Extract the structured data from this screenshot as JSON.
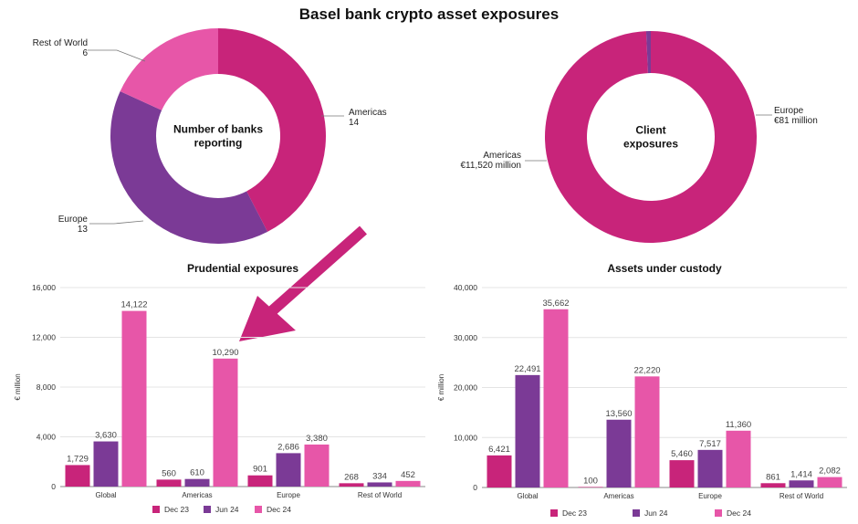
{
  "title": "Basel bank crypto asset exposures",
  "colors": {
    "dec23": "#c8247a",
    "jun24": "#7b3a96",
    "dec24": "#e756a8",
    "arrow": "#c8247a"
  },
  "chart_data": [
    {
      "type": "pie",
      "style": "donut",
      "center_label": [
        "Number of banks",
        "reporting"
      ],
      "slices": [
        {
          "label": "Americas",
          "value_label": "14",
          "value": 14,
          "color": "#c8247a"
        },
        {
          "label": "Europe",
          "value_label": "13",
          "value": 13,
          "color": "#7b3a96"
        },
        {
          "label": "Rest of World",
          "value_label": "6",
          "value": 6,
          "color": "#e756a8"
        }
      ]
    },
    {
      "type": "pie",
      "style": "donut",
      "center_label": [
        "Client",
        "exposures"
      ],
      "slices": [
        {
          "label": "Americas",
          "value_label": "€11,520 million",
          "value": 11520,
          "color": "#c8247a"
        },
        {
          "label": "Europe",
          "value_label": "€81 million",
          "value": 81,
          "color": "#7b3a96"
        }
      ]
    },
    {
      "type": "bar",
      "title": "Prudential exposures",
      "ylabel": "€ million",
      "ylim": [
        0,
        16000
      ],
      "yticks": [
        0,
        4000,
        8000,
        12000,
        16000
      ],
      "ytick_labels": [
        "0",
        "4,000",
        "8,000",
        "12,000",
        "16,000"
      ],
      "categories": [
        "Global",
        "Americas",
        "Europe",
        "Rest of World"
      ],
      "series": [
        {
          "name": "Dec 23",
          "values": [
            1729,
            560,
            901,
            268
          ],
          "labels": [
            "1,729",
            "560",
            "901",
            "268"
          ],
          "color": "#c8247a"
        },
        {
          "name": "Jun 24",
          "values": [
            3630,
            610,
            2686,
            334
          ],
          "labels": [
            "3,630",
            "610",
            "2,686",
            "334"
          ],
          "color": "#7b3a96"
        },
        {
          "name": "Dec 24",
          "values": [
            14122,
            10290,
            3380,
            452
          ],
          "labels": [
            "14,122",
            "10,290",
            "3,380",
            "452"
          ],
          "color": "#e756a8"
        }
      ],
      "legend": "bottom",
      "grid": true
    },
    {
      "type": "bar",
      "title": "Assets under custody",
      "ylabel": "€ million",
      "ylim": [
        0,
        40000
      ],
      "yticks": [
        0,
        10000,
        20000,
        30000,
        40000
      ],
      "ytick_labels": [
        "0",
        "10,000",
        "20,000",
        "30,000",
        "40,000"
      ],
      "categories": [
        "Global",
        "Americas",
        "Europe",
        "Rest of World"
      ],
      "series": [
        {
          "name": "Dec 23",
          "values": [
            6421,
            100,
            5460,
            861
          ],
          "labels": [
            "6,421",
            "100",
            "5,460",
            "861"
          ],
          "color": "#c8247a"
        },
        {
          "name": "Jun 24",
          "values": [
            22491,
            13560,
            7517,
            1414
          ],
          "labels": [
            "22,491",
            "13,560",
            "7,517",
            "1,414"
          ],
          "color": "#7b3a96"
        },
        {
          "name": "Dec 24",
          "values": [
            35662,
            22220,
            11360,
            2082
          ],
          "labels": [
            "35,662",
            "22,220",
            "11,360",
            "2,082"
          ],
          "color": "#e756a8"
        }
      ],
      "legend": "bottom",
      "grid": true
    }
  ]
}
